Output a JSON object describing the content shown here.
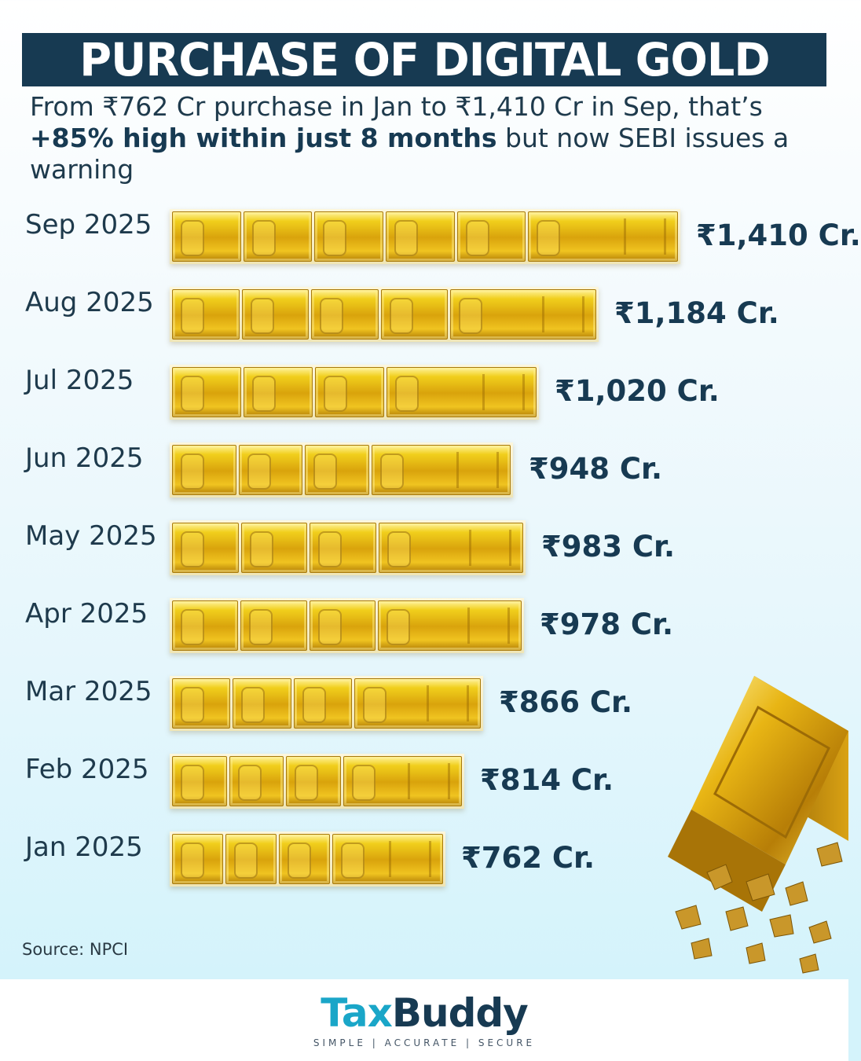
{
  "header": {
    "title": "PURCHASE OF DIGITAL GOLD",
    "subtitle_before": "From ₹762 Cr purchase in Jan to ₹1,410 Cr in Sep, that’s ",
    "subtitle_bold": "+85% high within just 8 months",
    "subtitle_after": " but now SEBI issues a warning"
  },
  "chart_data": {
    "type": "bar",
    "orientation": "horizontal",
    "categories": [
      "Sep 2025",
      "Aug 2025",
      "Jul 2025",
      "Jun 2025",
      "May 2025",
      "Apr 2025",
      "Mar 2025",
      "Feb 2025",
      "Jan 2025"
    ],
    "values": [
      1410,
      1184,
      1020,
      948,
      983,
      978,
      866,
      814,
      762
    ],
    "value_labels": [
      "₹1,410 Cr.",
      "₹1,184 Cr.",
      "₹1,020 Cr.",
      "₹948 Cr.",
      "₹983 Cr.",
      "₹978 Cr.",
      "₹866 Cr.",
      "₹814 Cr.",
      "₹762 Cr."
    ],
    "unit": "₹ Cr.",
    "bar_style": "stacked gold bars",
    "grid": false,
    "legend": "none"
  },
  "source": "Source: NPCI",
  "brand": {
    "name_part1": "Tax",
    "name_part2": "Buddy",
    "tagline": "SIMPLE | ACCURATE | SECURE",
    "colors": {
      "tax": "#1aa6c8",
      "buddy": "#173a52",
      "title_band": "#173a52",
      "gold": "#e0b013"
    }
  },
  "decoration": {
    "icon": "gold-bar-with-nuggets-icon"
  }
}
